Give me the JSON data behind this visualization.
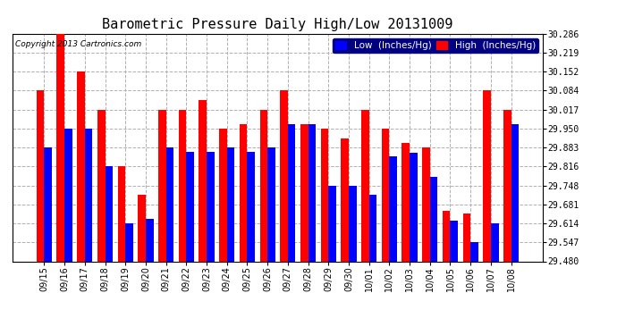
{
  "title": "Barometric Pressure Daily High/Low 20131009",
  "copyright": "Copyright 2013 Cartronics.com",
  "legend_low": "Low  (Inches/Hg)",
  "legend_high": "High  (Inches/Hg)",
  "categories": [
    "09/15",
    "09/16",
    "09/17",
    "09/18",
    "09/19",
    "09/20",
    "09/21",
    "09/22",
    "09/23",
    "09/24",
    "09/25",
    "09/26",
    "09/27",
    "09/28",
    "09/29",
    "09/30",
    "10/01",
    "10/02",
    "10/03",
    "10/04",
    "10/05",
    "10/06",
    "10/07",
    "10/08"
  ],
  "low_values": [
    29.883,
    29.95,
    29.95,
    29.816,
    29.614,
    29.631,
    29.883,
    29.866,
    29.866,
    29.883,
    29.866,
    29.883,
    29.966,
    29.966,
    29.748,
    29.748,
    29.714,
    29.85,
    29.865,
    29.78,
    29.625,
    29.547,
    29.614,
    29.966
  ],
  "high_values": [
    30.084,
    30.286,
    30.152,
    30.017,
    29.816,
    29.716,
    30.017,
    30.017,
    30.05,
    29.95,
    29.966,
    30.017,
    30.084,
    29.966,
    29.95,
    29.916,
    30.017,
    29.95,
    29.9,
    29.883,
    29.66,
    29.65,
    30.084,
    30.017
  ],
  "low_color": "#0000ff",
  "high_color": "#ff0000",
  "bg_color": "#ffffff",
  "plot_bg_color": "#ffffff",
  "grid_color": "#b0b0b0",
  "ylim_min": 29.48,
  "ylim_max": 30.286,
  "yticks": [
    29.48,
    29.547,
    29.614,
    29.681,
    29.748,
    29.816,
    29.883,
    29.95,
    30.017,
    30.084,
    30.152,
    30.219,
    30.286
  ],
  "bar_width": 0.38,
  "title_fontsize": 11,
  "tick_fontsize": 7,
  "legend_fontsize": 7.5
}
